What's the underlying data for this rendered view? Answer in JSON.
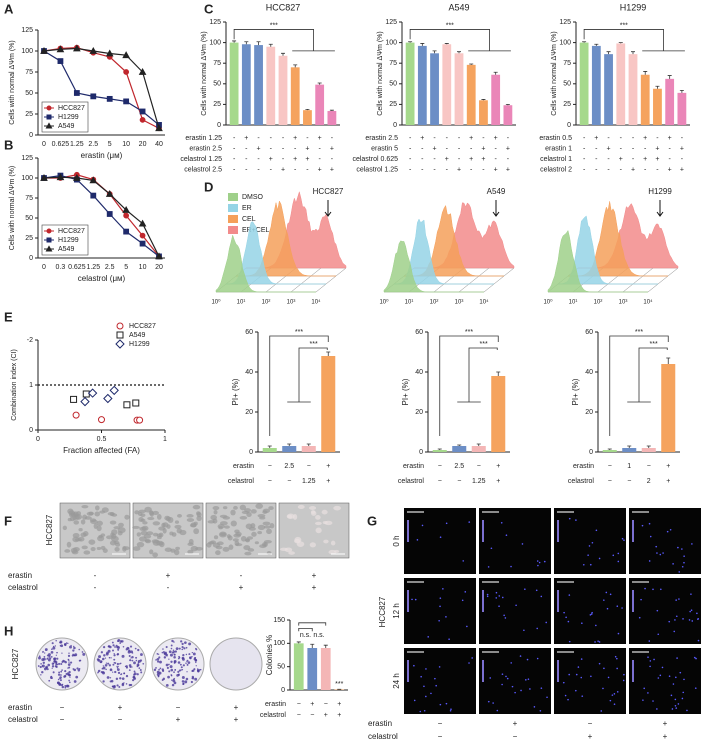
{
  "panel_labels": [
    "A",
    "B",
    "C",
    "D",
    "E",
    "F",
    "G",
    "H"
  ],
  "chart_data": [
    {
      "type": "line",
      "xlabel": "erastin (μм)",
      "ylabel": "Cells with normal ΔΨm (%)",
      "categories": [
        "0",
        "0.625",
        "1.25",
        "2.5",
        "5",
        "10",
        "20",
        "40"
      ],
      "ylim": [
        0,
        125
      ],
      "yticks": [
        0,
        25,
        50,
        75,
        100,
        125
      ],
      "legend": "lower left",
      "series": [
        {
          "name": "HCC827",
          "color": "#c0272d",
          "marker": "circle",
          "values": [
            100,
            103,
            104,
            98,
            93,
            75,
            18,
            8
          ]
        },
        {
          "name": "H1299",
          "color": "#1f2a6b",
          "marker": "square",
          "values": [
            100,
            88,
            50,
            46,
            43,
            40,
            28,
            12
          ]
        },
        {
          "name": "A549",
          "color": "#222222",
          "marker": "triangle",
          "values": [
            100,
            102,
            103,
            100,
            97,
            95,
            75,
            8
          ]
        }
      ]
    },
    {
      "type": "line",
      "xlabel": "celastrol (μм)",
      "ylabel": "Cells with normal ΔΨm (%)",
      "categories": [
        "0",
        "0.3",
        "0.625",
        "1.25",
        "2.5",
        "5",
        "10",
        "20"
      ],
      "ylim": [
        0,
        125
      ],
      "yticks": [
        0,
        25,
        50,
        75,
        100,
        125
      ],
      "legend": "lower left",
      "series": [
        {
          "name": "HCC827",
          "color": "#c0272d",
          "marker": "circle",
          "values": [
            100,
            100,
            104,
            98,
            80,
            53,
            28,
            2
          ]
        },
        {
          "name": "H1299",
          "color": "#1f2a6b",
          "marker": "square",
          "values": [
            100,
            103,
            98,
            78,
            55,
            33,
            18,
            2
          ]
        },
        {
          "name": "A549",
          "color": "#222222",
          "marker": "triangle",
          "values": [
            100,
            101,
            100,
            97,
            80,
            60,
            43,
            2
          ]
        }
      ]
    },
    {
      "type": "bar",
      "title": "HCC827",
      "ylabel": "Cells with normal ΔΨm (%)",
      "ylim": [
        0,
        125
      ],
      "yticks": [
        0,
        25,
        50,
        75,
        100,
        125
      ],
      "values": [
        100,
        98,
        97,
        95,
        84,
        70,
        18,
        49,
        17
      ],
      "errors": [
        2,
        3,
        4,
        3,
        3,
        3,
        1,
        2,
        1
      ],
      "colors": [
        "#a6d98c",
        "#6c8ec6",
        "#6c8ec6",
        "#f8c6c4",
        "#f8c6c4",
        "#f5a35e",
        "#f5a35e",
        "#ea86b8",
        "#ea86b8"
      ],
      "conditions": [
        {
          "label": "erastin 1.25",
          "marks": [
            "-",
            "+",
            "-",
            "-",
            "-",
            "+",
            "-",
            "+",
            "-"
          ]
        },
        {
          "label": "erastin 2.5",
          "marks": [
            "-",
            "-",
            "+",
            "-",
            "-",
            "-",
            "+",
            "-",
            "+"
          ]
        },
        {
          "label": "celastrol 1.25",
          "marks": [
            "-",
            "-",
            "-",
            "+",
            "-",
            "+",
            "+",
            "-",
            "-"
          ]
        },
        {
          "label": "celastrol 2.5",
          "marks": [
            "-",
            "-",
            "-",
            "-",
            "+",
            "-",
            "-",
            "+",
            "+"
          ]
        }
      ],
      "annotations": [
        "***"
      ]
    },
    {
      "type": "bar",
      "title": "A549",
      "ylabel": "Cells with normal ΔΨm (%)",
      "ylim": [
        0,
        125
      ],
      "yticks": [
        0,
        25,
        50,
        75,
        100,
        125
      ],
      "values": [
        100,
        96,
        87,
        98,
        87,
        73,
        30,
        61,
        24
      ],
      "errors": [
        1,
        3,
        3,
        1,
        2,
        1,
        1,
        3,
        1
      ],
      "colors": [
        "#a6d98c",
        "#6c8ec6",
        "#6c8ec6",
        "#f8c6c4",
        "#f8c6c4",
        "#f5a35e",
        "#f5a35e",
        "#ea86b8",
        "#ea86b8"
      ],
      "conditions": [
        {
          "label": "erastin 2.5",
          "marks": [
            "-",
            "+",
            "-",
            "-",
            "-",
            "+",
            "-",
            "+",
            "-"
          ]
        },
        {
          "label": "erastin 5",
          "marks": [
            "-",
            "-",
            "+",
            "-",
            "-",
            "-",
            "+",
            "-",
            "+"
          ]
        },
        {
          "label": "celastrol 0.625",
          "marks": [
            "-",
            "-",
            "-",
            "+",
            "-",
            "+",
            "+",
            "-",
            "-"
          ]
        },
        {
          "label": "celastrol 1.25",
          "marks": [
            "-",
            "-",
            "-",
            "-",
            "+",
            "-",
            "-",
            "+",
            "+"
          ]
        }
      ],
      "annotations": [
        "***"
      ]
    },
    {
      "type": "bar",
      "title": "H1299",
      "ylabel": "Cells with normal ΔΨm (%)",
      "ylim": [
        0,
        125
      ],
      "yticks": [
        0,
        25,
        50,
        75,
        100,
        125
      ],
      "values": [
        100,
        96,
        86,
        99,
        86,
        61,
        44,
        56,
        39
      ],
      "errors": [
        1,
        2,
        3,
        1,
        3,
        4,
        3,
        4,
        3
      ],
      "colors": [
        "#a6d98c",
        "#6c8ec6",
        "#6c8ec6",
        "#f8c6c4",
        "#f8c6c4",
        "#f5a35e",
        "#f5a35e",
        "#ea86b8",
        "#ea86b8"
      ],
      "conditions": [
        {
          "label": "erastin 0.5",
          "marks": [
            "-",
            "+",
            "-",
            "-",
            "-",
            "+",
            "-",
            "+",
            "-"
          ]
        },
        {
          "label": "erastin 1",
          "marks": [
            "-",
            "-",
            "+",
            "-",
            "-",
            "-",
            "+",
            "-",
            "+"
          ]
        },
        {
          "label": "celastrol 1",
          "marks": [
            "-",
            "-",
            "-",
            "+",
            "-",
            "+",
            "+",
            "-",
            "-"
          ]
        },
        {
          "label": "celastrol 2",
          "marks": [
            "-",
            "-",
            "-",
            "-",
            "+",
            "-",
            "-",
            "+",
            "+"
          ]
        }
      ],
      "annotations": [
        "***"
      ]
    },
    {
      "type": "bar",
      "ylabel": "PI+ (%)",
      "ylim": [
        0,
        60
      ],
      "yticks": [
        0,
        20,
        40,
        60
      ],
      "values": [
        2,
        3,
        3,
        48
      ],
      "errors": [
        1,
        1,
        1,
        2
      ],
      "colors": [
        "#a6d98c",
        "#6c8ec6",
        "#f4b6b6",
        "#f5a35e"
      ],
      "conditions": [
        {
          "label": "erastin",
          "marks": [
            "−",
            "2.5",
            "−",
            "+"
          ]
        },
        {
          "label": "celastrol",
          "marks": [
            "−",
            "−",
            "1.25",
            "+"
          ]
        }
      ],
      "annotations": [
        "***",
        "***"
      ]
    },
    {
      "type": "bar",
      "ylabel": "PI+ (%)",
      "ylim": [
        0,
        60
      ],
      "yticks": [
        0,
        20,
        40,
        60
      ],
      "values": [
        1,
        3,
        3,
        38
      ],
      "errors": [
        0.5,
        0.5,
        1,
        2
      ],
      "colors": [
        "#a6d98c",
        "#6c8ec6",
        "#f4b6b6",
        "#f5a35e"
      ],
      "conditions": [
        {
          "label": "erastin",
          "marks": [
            "−",
            "2.5",
            "−",
            "+"
          ]
        },
        {
          "label": "celastrol",
          "marks": [
            "−",
            "−",
            "1.25",
            "+"
          ]
        }
      ],
      "annotations": [
        "***",
        "***"
      ]
    },
    {
      "type": "bar",
      "ylabel": "PI+ (%)",
      "ylim": [
        0,
        60
      ],
      "yticks": [
        0,
        20,
        40,
        60
      ],
      "values": [
        1,
        2,
        2,
        44
      ],
      "errors": [
        0.5,
        1,
        1,
        3
      ],
      "colors": [
        "#a6d98c",
        "#6c8ec6",
        "#f4b6b6",
        "#f5a35e"
      ],
      "conditions": [
        {
          "label": "erastin",
          "marks": [
            "−",
            "1",
            "−",
            "+"
          ]
        },
        {
          "label": "celastrol",
          "marks": [
            "−",
            "−",
            "2",
            "+"
          ]
        }
      ],
      "annotations": [
        "***",
        "***"
      ]
    },
    {
      "type": "scatter",
      "xlabel": "Fraction affected (FA)",
      "ylabel": "Combination index (CI)",
      "xlim": [
        0,
        1
      ],
      "xticks": [
        0,
        0.5,
        1
      ],
      "ylim": [
        0,
        2
      ],
      "yticks": [
        {
          "value": 2,
          "label": "-2"
        },
        1,
        0
      ],
      "reference_line": 1,
      "legend": "upper right",
      "series": [
        {
          "name": "HCC827",
          "color": "#c0272d",
          "marker": "circle",
          "x": [
            0.3,
            0.5,
            0.78,
            0.8
          ],
          "values": [
            0.33,
            0.23,
            0.22,
            0.22
          ]
        },
        {
          "name": "A549",
          "color": "#222222",
          "marker": "square",
          "x": [
            0.28,
            0.38,
            0.7,
            0.77
          ],
          "values": [
            0.68,
            0.8,
            0.56,
            0.6
          ]
        },
        {
          "name": "H1299",
          "color": "#1f2a6b",
          "marker": "diamond",
          "x": [
            0.37,
            0.43,
            0.55,
            0.6
          ],
          "values": [
            0.63,
            0.82,
            0.7,
            0.88
          ]
        }
      ]
    },
    {
      "type": "bar",
      "ylabel": "Colonies %",
      "ylim": [
        0,
        150
      ],
      "yticks": [
        0,
        50,
        100,
        150
      ],
      "values": [
        100,
        90,
        90,
        1
      ],
      "errors": [
        3,
        8,
        6,
        0.5
      ],
      "colors": [
        "#a6d98c",
        "#6c8ec6",
        "#f4b6b6",
        "#f5a35e"
      ],
      "conditions": [
        {
          "label": "erastin",
          "marks": [
            "−",
            "+",
            "−",
            "+"
          ]
        },
        {
          "label": "celastrol",
          "marks": [
            "−",
            "−",
            "+",
            "+"
          ]
        }
      ],
      "annotations": [
        "n.s.",
        "n.s.",
        "***"
      ]
    }
  ],
  "flow_cytometry": {
    "titles": [
      "HCC827",
      "A549",
      "H1299"
    ],
    "legend": [
      {
        "name": "DMSO",
        "color": "#9fd08a"
      },
      {
        "name": "ER",
        "color": "#95d4e6"
      },
      {
        "name": "CEL",
        "color": "#f5a05a"
      },
      {
        "name": "ER+CEL",
        "color": "#f28b8b"
      }
    ],
    "tick_labels": [
      "10⁰",
      "10¹",
      "10²",
      "10³",
      "10⁴"
    ]
  },
  "panel_f": {
    "row_label": "HCC827",
    "conditions": [
      {
        "label": "erastin",
        "marks": [
          "-",
          "+",
          "-",
          "+"
        ]
      },
      {
        "label": "celastrol",
        "marks": [
          "-",
          "-",
          "+",
          "+"
        ]
      }
    ]
  },
  "panel_g": {
    "cell_line": "HCC827",
    "rows": [
      "0 h",
      "12 h",
      "24 h"
    ],
    "conditions": [
      {
        "label": "erastin",
        "marks": [
          "−",
          "+",
          "−",
          "+"
        ]
      },
      {
        "label": "celastrol",
        "marks": [
          "−",
          "−",
          "+",
          "+"
        ]
      }
    ]
  },
  "panel_h": {
    "row_label": "HCC827",
    "conditions": [
      {
        "label": "erastin",
        "marks": [
          "−",
          "+",
          "−",
          "+"
        ]
      },
      {
        "label": "celastrol",
        "marks": [
          "−",
          "−",
          "+",
          "+"
        ]
      }
    ]
  }
}
